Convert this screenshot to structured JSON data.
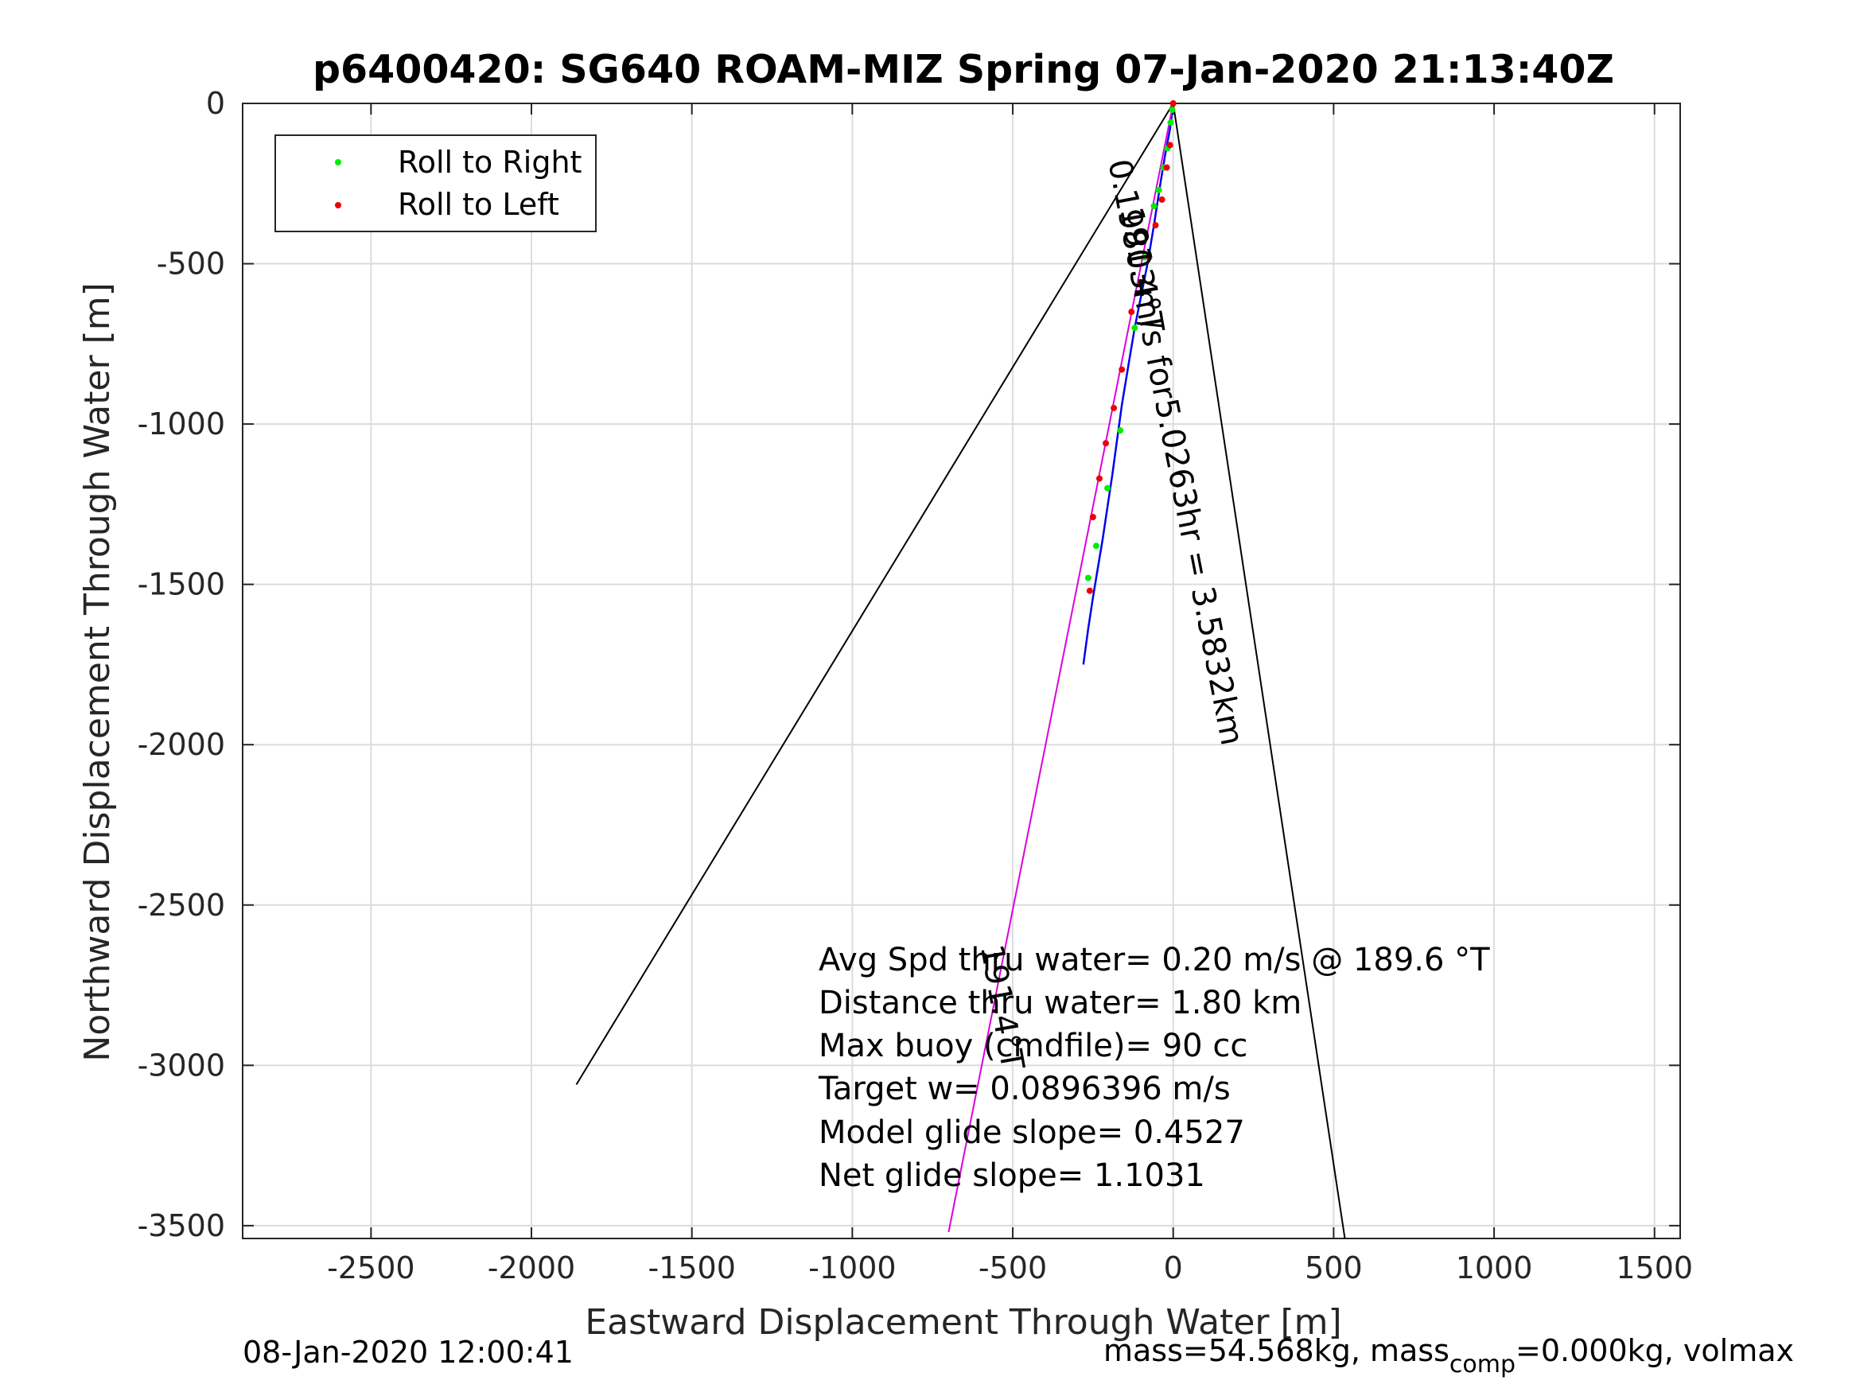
{
  "chart_data": {
    "type": "line",
    "title": "p6400420: SG640 ROAM-MIZ Spring 07-Jan-2020 21:13:40Z",
    "xlabel": "Eastward Displacement Through Water [m]",
    "ylabel": "Northward Displacement Through Water [m]",
    "xlim": [
      -2900,
      1580
    ],
    "ylim": [
      -3540,
      0
    ],
    "xticks": [
      -2500,
      -2000,
      -1500,
      -1000,
      -500,
      0,
      500,
      1000,
      1500
    ],
    "xtick_labels": [
      "-2500",
      "-2000",
      "-1500",
      "-1000",
      "-500",
      "0",
      "500",
      "1000",
      "1500"
    ],
    "yticks": [
      0,
      -500,
      -1000,
      -1500,
      -2000,
      -2500,
      -3000,
      -3500
    ],
    "ytick_labels": [
      "0",
      "-500",
      "-1000",
      "-1500",
      "-2000",
      "-2500",
      "-3000",
      "-3500"
    ],
    "grid": true,
    "legend": {
      "position": "top-left",
      "entries": [
        {
          "label": "Roll to Right",
          "color": "#00ee00"
        },
        {
          "label": "Roll to Left",
          "color": "#ee0000"
        }
      ]
    },
    "series": [
      {
        "role": "glider-track",
        "color": "#0000ee",
        "x": [
          0,
          -10,
          -25,
          -40,
          -60,
          -80,
          -100,
          -120,
          -140,
          -160,
          -175,
          -190,
          -205,
          -220,
          -235,
          -250,
          -265,
          -280
        ],
        "y": [
          0,
          -80,
          -160,
          -250,
          -380,
          -500,
          -600,
          -700,
          -820,
          -940,
          -1050,
          -1160,
          -1260,
          -1360,
          -1450,
          -1540,
          -1640,
          -1750
        ]
      },
      {
        "role": "heading-line",
        "color": "#dd00dd",
        "x": [
          0,
          -700
        ],
        "y": [
          0,
          -3520
        ]
      },
      {
        "role": "envelope-left",
        "color": "#000000",
        "x": [
          0,
          -1860
        ],
        "y": [
          0,
          -3060
        ]
      },
      {
        "role": "envelope-right",
        "color": "#000000",
        "x": [
          0,
          535
        ],
        "y": [
          0,
          -3540
        ]
      }
    ],
    "roll_right_points": {
      "x": [
        -3,
        -8,
        -18,
        -30,
        -45,
        -60,
        -90,
        -120,
        -165,
        -205,
        -240,
        -265
      ],
      "y": [
        -20,
        -60,
        -140,
        -200,
        -270,
        -320,
        -480,
        -700,
        -1020,
        -1200,
        -1380,
        -1480
      ]
    },
    "roll_left_points": {
      "x": [
        0,
        -10,
        -20,
        -35,
        -55,
        -75,
        -100,
        -130,
        -160,
        -185,
        -210,
        -230,
        -250,
        -260
      ],
      "y": [
        0,
        -130,
        -200,
        -300,
        -380,
        -480,
        -560,
        -650,
        -830,
        -950,
        -1060,
        -1170,
        -1290,
        -1520
      ]
    },
    "annotations": [
      {
        "text": "0.19803m/s for5.0263hr = 3.5832km",
        "anchor_x": 0,
        "anchor_y": -350
      },
      {
        "text": "191.4°T",
        "anchor_x": -165,
        "anchor_y": -330
      },
      {
        "text": "191.4°T",
        "anchor_x": -600,
        "anchor_y": -2630
      }
    ],
    "stats": [
      "Avg Spd thru water=  0.20 m/s @ 189.6 °T",
      "Distance thru water=  1.80 km",
      "Max buoy (cmdfile)= 90 cc",
      "Target w= 0.0896396 m/s",
      "Model glide slope= 0.4527",
      "Net glide slope= 1.1031"
    ]
  },
  "footer": {
    "timestamp": "08-Jan-2020 12:00:41",
    "mass_prefix": "mass=54.568kg, mass",
    "mass_subscript": "comp",
    "mass_suffix": "=0.000kg, volmax"
  }
}
